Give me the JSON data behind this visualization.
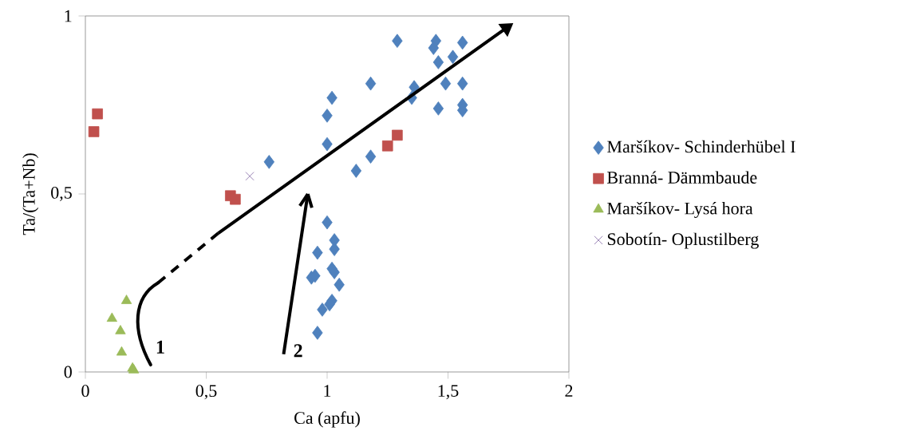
{
  "chart_data": {
    "type": "scatter",
    "xlabel": "Ca (apfu)",
    "ylabel": "Ta/(Ta+Nb)",
    "xlim": [
      0,
      2
    ],
    "ylim": [
      0,
      1
    ],
    "xticks": [
      0,
      {
        "value": 0.5,
        "label": "0,5"
      },
      1,
      {
        "value": 1.5,
        "label": "1,5"
      },
      2
    ],
    "yticks": [
      0,
      {
        "value": 0.5,
        "label": "0,5"
      },
      1
    ],
    "legend": "right",
    "grid": false,
    "series": [
      {
        "name": "Maršíkov- Schinderhübel I",
        "color": "#4f81bd",
        "marker": "diamond",
        "x": [
          0.76,
          1.0,
          1.02,
          1.0,
          1.29,
          1.18,
          1.12,
          1.18,
          1.45,
          1.44,
          1.46,
          1.52,
          1.56,
          1.36,
          1.35,
          1.49,
          1.56,
          1.46,
          1.56,
          1.56,
          1.0,
          1.03,
          1.03,
          0.96,
          1.02,
          1.03,
          0.935,
          0.95,
          1.05,
          1.02,
          1.01,
          0.98,
          0.96
        ],
        "values": [
          0.59,
          0.72,
          0.77,
          0.64,
          0.93,
          0.81,
          0.565,
          0.605,
          0.93,
          0.91,
          0.87,
          0.885,
          0.925,
          0.8,
          0.77,
          0.81,
          0.81,
          0.74,
          0.75,
          0.735,
          0.42,
          0.37,
          0.345,
          0.335,
          0.29,
          0.28,
          0.265,
          0.27,
          0.245,
          0.2,
          0.19,
          0.175,
          0.11
        ]
      },
      {
        "name": "Branná- Dämmbaude",
        "color": "#c0504d",
        "marker": "square",
        "x": [
          0.05,
          0.035,
          0.6,
          0.62,
          1.25,
          1.29
        ],
        "values": [
          0.725,
          0.675,
          0.495,
          0.485,
          0.635,
          0.665
        ]
      },
      {
        "name": "Maršíkov- Lysá hora",
        "color": "#9bbb59",
        "marker": "triangle",
        "x": [
          0.17,
          0.11,
          0.145,
          0.15,
          0.195,
          0.2
        ],
        "values": [
          0.2,
          0.15,
          0.115,
          0.055,
          0.01,
          0.005
        ]
      },
      {
        "name": "Sobotín- Oplustilberg",
        "color": "#8064a2",
        "marker": "cross",
        "x": [
          0.68
        ],
        "values": [
          0.55
        ]
      }
    ],
    "annotations": [
      "1",
      "2"
    ]
  }
}
